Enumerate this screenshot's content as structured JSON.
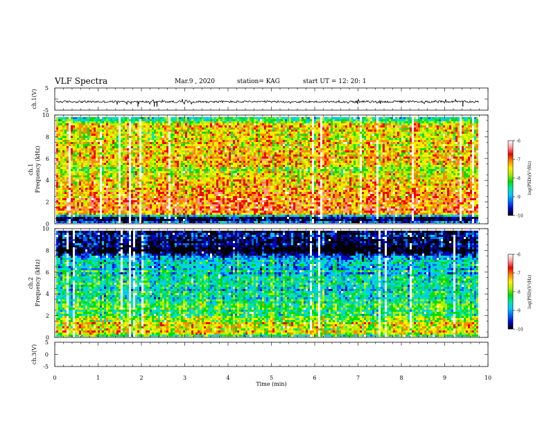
{
  "header": {
    "title": "VLF Spectra",
    "date": "Mar.9 , 2020",
    "station": "station= KAG",
    "start": "start UT = 12: 20: 1"
  },
  "chart_data": [
    {
      "type": "line",
      "panel": "ch1_waveform",
      "ylabel": "ch.1(V)",
      "yticks": [
        "5",
        "-5"
      ],
      "ylim": [
        -5,
        5
      ],
      "xlim": [
        0,
        10
      ],
      "baseline": -1.2,
      "spikes_min": [
        1.92,
        2.3,
        2.36,
        9.42
      ],
      "spike_depth": -3.4
    },
    {
      "type": "heatmap",
      "panel": "ch1_spectrogram",
      "ylabel": "ch.1 Frequency (kHz)",
      "yticks": [
        "0",
        "2",
        "4",
        "6",
        "8",
        "10"
      ],
      "ylim": [
        0,
        10
      ],
      "xlim": [
        0,
        9.8
      ],
      "colorbar": {
        "label": "log(PSD)(V²/Hz)",
        "ticks": [
          "-6",
          "-7",
          "-8",
          "-9",
          "-10"
        ],
        "range": [
          -10,
          -6
        ]
      },
      "frequency_profile_khz": [
        0,
        0.5,
        1,
        2,
        3,
        4,
        5,
        6,
        7,
        8,
        9,
        9.5,
        10
      ],
      "level_profile": [
        -8.6,
        -10.5,
        -6.4,
        -6.5,
        -6.6,
        -7.0,
        -7.3,
        -6.9,
        -7.0,
        -7.3,
        -6.8,
        -8.0,
        -8.6
      ],
      "saturated_columns_min": [
        0.3,
        1.05,
        1.45,
        1.7,
        1.72,
        1.95,
        2.6,
        5.95,
        6.15,
        7.05,
        7.4,
        8.25,
        9.35,
        9.62
      ]
    },
    {
      "type": "heatmap",
      "panel": "ch2_spectrogram",
      "ylabel": "ch.2 Frequency (kHz)",
      "yticks": [
        "0",
        "2",
        "4",
        "6",
        "8",
        "10"
      ],
      "ylim": [
        0,
        10
      ],
      "xlim": [
        0,
        9.8
      ],
      "colorbar": {
        "label": "log(PSD)(V²/Hz)",
        "ticks": [
          "-6",
          "-7",
          "-8",
          "-9",
          "-10"
        ],
        "range": [
          -10,
          -6
        ]
      },
      "frequency_profile_khz": [
        0,
        0.5,
        1,
        1.5,
        2,
        3,
        4,
        5,
        6,
        7,
        8,
        9,
        9.5,
        10
      ],
      "level_profile": [
        -8.2,
        -7.2,
        -7.0,
        -7.4,
        -7.9,
        -8.1,
        -8.4,
        -8.3,
        -8.5,
        -8.6,
        -10.3,
        -9.5,
        -9.8,
        -10.8
      ],
      "saturated_columns_min": [
        0.25,
        0.4,
        1.5,
        1.7,
        1.8,
        2.0,
        5.9,
        6.1,
        7.45,
        7.6,
        8.2,
        9.2
      ]
    },
    {
      "type": "line",
      "panel": "ch3_waveform",
      "ylabel": "ch.3(V)",
      "yticks": [
        "5",
        "0",
        "-5"
      ],
      "ylim": [
        -5,
        5
      ],
      "xlim": [
        0,
        10
      ],
      "xlabel": "Time (min)",
      "xticks": [
        "0",
        "1",
        "2",
        "3",
        "4",
        "5",
        "6",
        "7",
        "8",
        "9",
        "10"
      ]
    }
  ],
  "colors": {
    "scale": [
      "#000000",
      "#0000c8",
      "#0066ff",
      "#00c8ff",
      "#00e6aa",
      "#00dd00",
      "#aaee00",
      "#ffee00",
      "#ff8800",
      "#ee0000",
      "#ff9999",
      "#ffffff"
    ]
  }
}
